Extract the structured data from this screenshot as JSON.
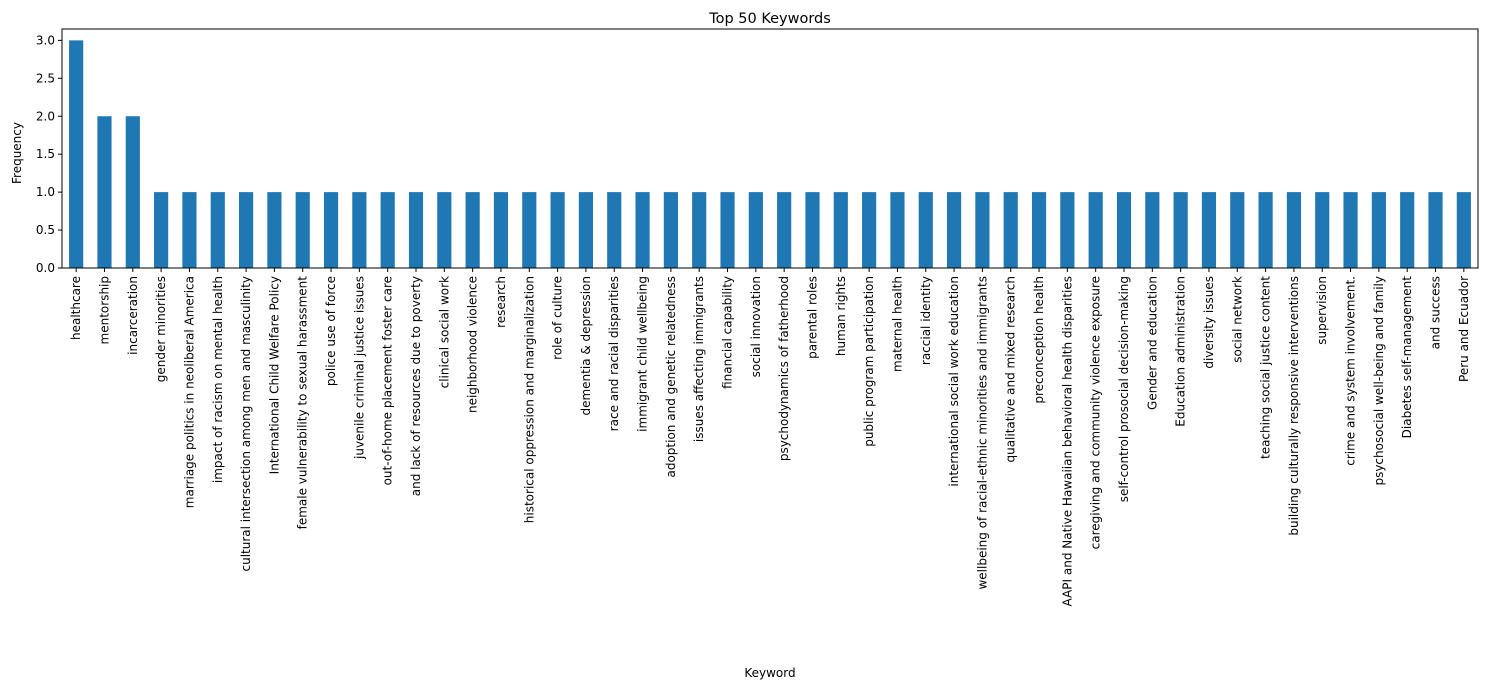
{
  "chart_data": {
    "type": "bar",
    "title": "Top 50 Keywords",
    "xlabel": "Keyword",
    "ylabel": "Frequency",
    "ylim": [
      0,
      3.15
    ],
    "yticks": [
      "0.0",
      "0.5",
      "1.0",
      "1.5",
      "2.0",
      "2.5",
      "3.0"
    ],
    "grid": false,
    "bar_color": "#1f77b4",
    "categories": [
      "healthcare",
      "mentorship",
      "incarceration",
      "gender minorities",
      "marriage politics in neoliberal America",
      "impact of racism on mental health",
      "cultural intersection among men and masculinity",
      "International Child Welfare Policy",
      "female vulnerability to sexual harassment",
      "police use of force",
      "juvenile criminal justice issues",
      "out-of-home placement foster care",
      "and lack of resources due to poverty",
      "clinical social work",
      "neighborhood violence",
      "research",
      "historical oppression and marginalization",
      "role of culture",
      "dementia & depression",
      "race and racial disparities",
      "immigrant child wellbeing",
      "adoption and genetic relatedness",
      "issues affecting immigrants",
      "financial capability",
      "social innovation",
      "psychodynamics of fatherhood",
      "parental roles",
      "human rights",
      "public program participation",
      "maternal health",
      "raccial identity",
      "international social work education",
      "wellbeing of racial-ethnic minorities and immigrants",
      "qualitative and mixed research",
      "preconception health",
      "AAPI and Native Hawaiian behavioral health disparities",
      "caregiving and community violence exposure",
      "self-control prosocial decision-making",
      "Gender and education",
      "Education administration",
      "diversity issues",
      "social network",
      "teaching social justice content",
      "building culturally responsive interventions",
      "supervision",
      "crime and system involvement.",
      "psychosocial well-being and family",
      "Diabetes self-management",
      "and success",
      "Peru and Ecuador"
    ],
    "values": [
      3,
      2,
      2,
      1,
      1,
      1,
      1,
      1,
      1,
      1,
      1,
      1,
      1,
      1,
      1,
      1,
      1,
      1,
      1,
      1,
      1,
      1,
      1,
      1,
      1,
      1,
      1,
      1,
      1,
      1,
      1,
      1,
      1,
      1,
      1,
      1,
      1,
      1,
      1,
      1,
      1,
      1,
      1,
      1,
      1,
      1,
      1,
      1,
      1,
      1
    ]
  }
}
